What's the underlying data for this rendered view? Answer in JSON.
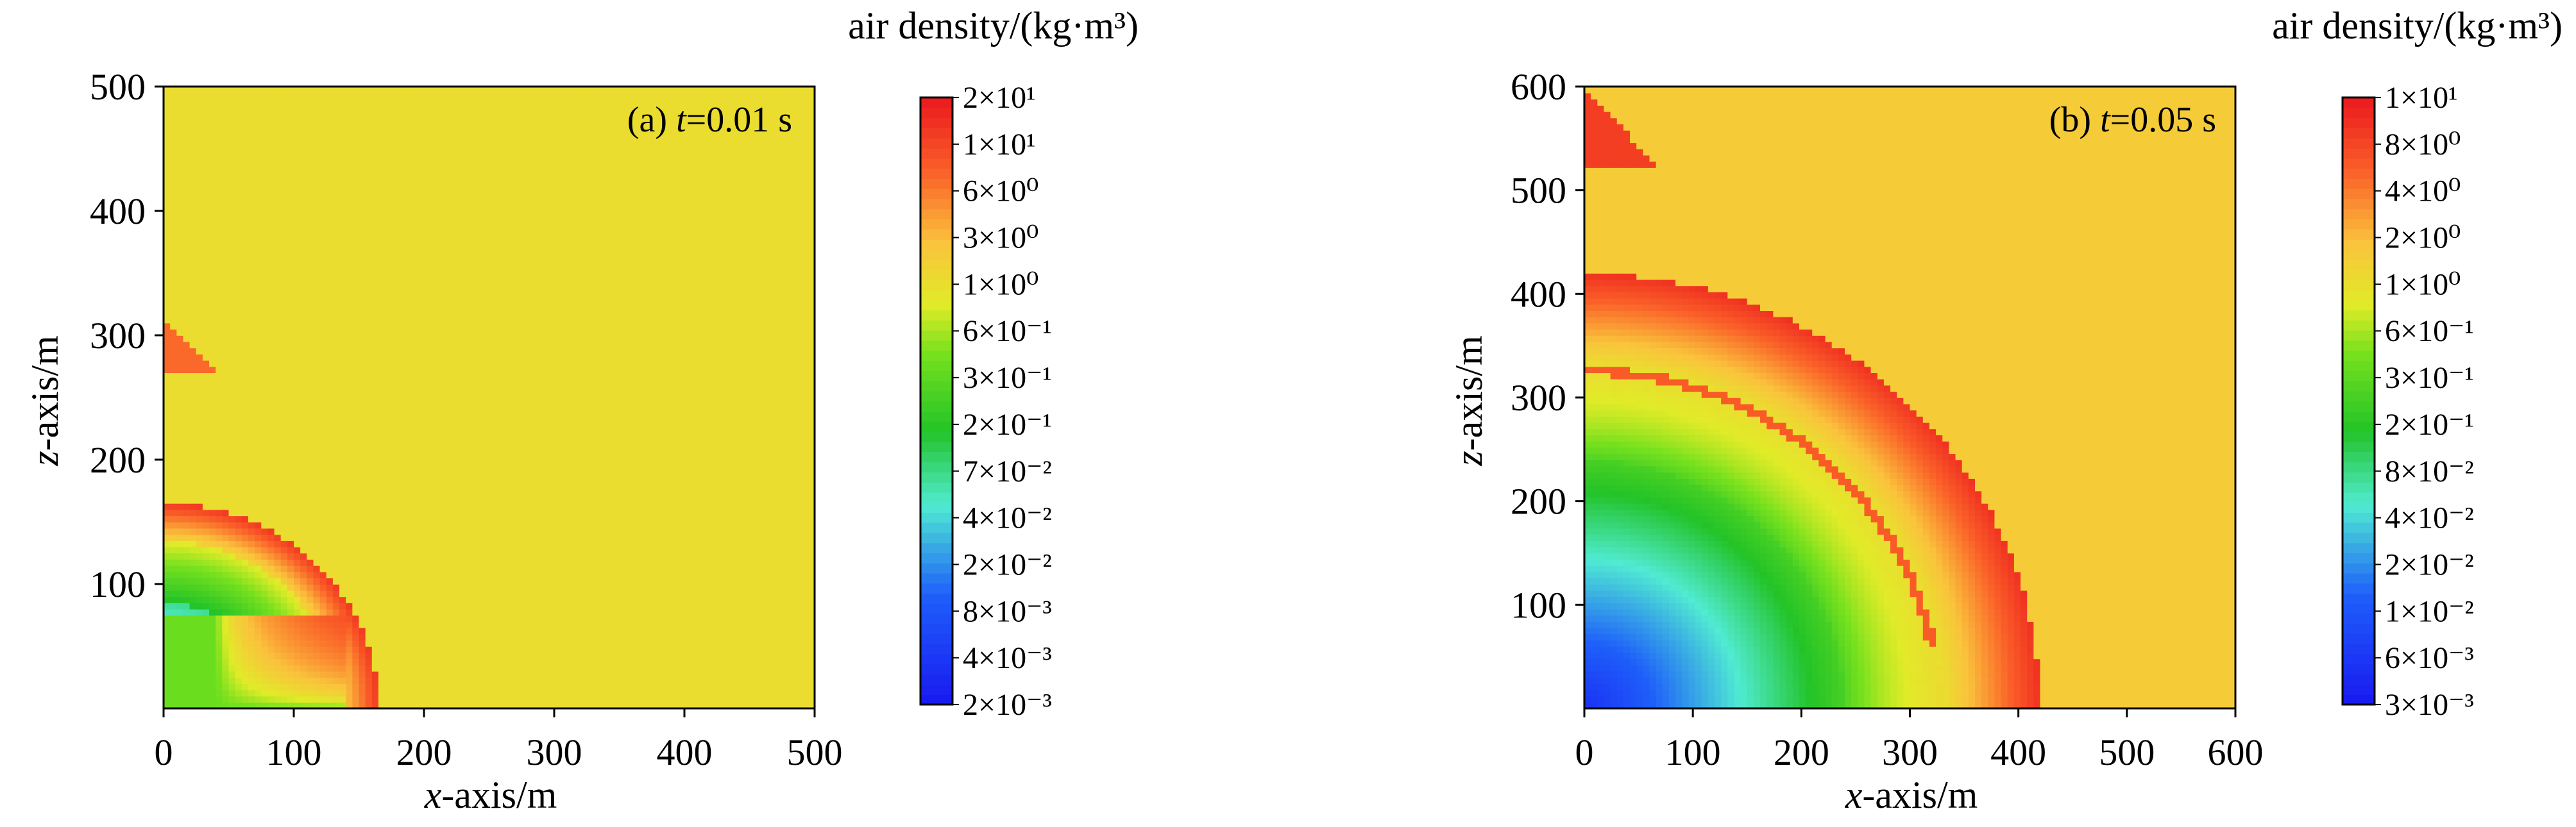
{
  "chart_data": [
    {
      "type": "heatmap",
      "annotation_prefix": "(a) ",
      "annotation_var": "t",
      "annotation_suffix": "=0.01 s",
      "xlabel_var": "x",
      "xlabel_rest": "-axis/m",
      "ylabel_var": "z",
      "ylabel_rest": "-axis/m",
      "xlim": [
        0,
        500
      ],
      "ylim": [
        0,
        500
      ],
      "xticks": [
        0,
        100,
        200,
        300,
        400,
        500
      ],
      "yticks": [
        100,
        200,
        300,
        400,
        500
      ],
      "ambient_density": 1.2,
      "field_description": "spherical blast wave centred at x=0, z=0",
      "features": {
        "shock_front_radius_m": 165,
        "high_density_shell_m": [
          135,
          165
        ],
        "green_shell_m": [
          85,
          130
        ],
        "low_density_core_max_radius_m": 85,
        "ground_reflection_layer_max_z_m": 75
      },
      "colorbar": {
        "label": "air density/(kg·m³)",
        "ticks": [
          "2×10¹",
          "1×10¹",
          "6×10⁰",
          "3×10⁰",
          "1×10⁰",
          "6×10⁻¹",
          "3×10⁻¹",
          "2×10⁻¹",
          "7×10⁻²",
          "4×10⁻²",
          "2×10⁻²",
          "8×10⁻³",
          "4×10⁻³",
          "2×10⁻³"
        ],
        "min": 0.002,
        "max": 20
      }
    },
    {
      "type": "heatmap",
      "annotation_prefix": "(b) ",
      "annotation_var": "t",
      "annotation_suffix": "=0.05 s",
      "xlabel_var": "x",
      "xlabel_rest": "-axis/m",
      "ylabel_var": "z",
      "ylabel_rest": "-axis/m",
      "xlim": [
        0,
        600
      ],
      "ylim": [
        0,
        600
      ],
      "xticks": [
        0,
        100,
        200,
        300,
        400,
        500,
        600
      ],
      "yticks": [
        100,
        200,
        300,
        400,
        500,
        600
      ],
      "ambient_density": 1.2,
      "field_description": "spherical blast wave centred at x=0, z=0",
      "features": {
        "shock_front_radius_m": 420,
        "high_density_shell_m": [
          330,
          420
        ],
        "secondary_shock_radius_m": 340,
        "green_shell_m": [
          240,
          320
        ],
        "low_density_core_max_radius_m": 230
      },
      "colorbar": {
        "label": "air density/(kg·m³)",
        "ticks": [
          "1×10¹",
          "8×10⁰",
          "4×10⁰",
          "2×10⁰",
          "1×10⁰",
          "6×10⁻¹",
          "3×10⁻¹",
          "2×10⁻¹",
          "8×10⁻²",
          "4×10⁻²",
          "2×10⁻²",
          "1×10⁻²",
          "6×10⁻³",
          "3×10⁻³"
        ],
        "min": 0.003,
        "max": 10
      }
    }
  ]
}
